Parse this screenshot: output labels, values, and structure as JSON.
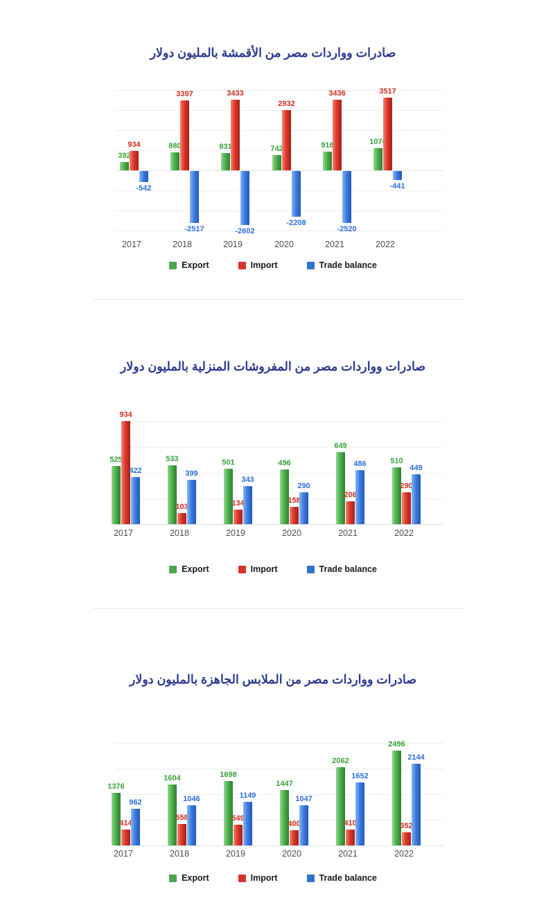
{
  "legend": {
    "export": "Export",
    "import": "Import",
    "trade_balance": "Trade balance"
  },
  "colors": {
    "title": "#2b3990",
    "export_bar": "#4db24d",
    "import_bar": "#e0372a",
    "trade_balance_bar": "#3e7ee2",
    "export_label": "#3aa13a",
    "import_label": "#cf2d20",
    "trade_balance_label": "#2d6fd9",
    "year_label": "#4d4d4d",
    "gridline": "#eeeeee"
  },
  "chart_data": [
    {
      "type": "bar",
      "title": "صادرات وواردات مصر من الأقمشة بالمليون دولار",
      "categories": [
        "2017",
        "2018",
        "2019",
        "2020",
        "2021",
        "2022"
      ],
      "series": [
        {
          "name": "Export",
          "values": [
            392,
            880,
            831,
            742,
            916,
            1076
          ]
        },
        {
          "name": "Import",
          "values": [
            934,
            3397,
            3433,
            2932,
            3436,
            3517
          ]
        },
        {
          "name": "Trade balance",
          "values": [
            -542,
            -2517,
            -2602,
            -2208,
            -2520,
            -441
          ]
        }
      ],
      "ylim": [
        -2800,
        3800
      ],
      "grid": true,
      "legend_position": "bottom",
      "xlabel": "",
      "ylabel": ""
    },
    {
      "type": "bar",
      "title": "صادرات وواردات مصر من المفروشات المنزلية بالمليون دولار",
      "categories": [
        "2017",
        "2018",
        "2019",
        "2020",
        "2021",
        "2022"
      ],
      "series": [
        {
          "name": "Export",
          "values": [
            525,
            533,
            501,
            496,
            649,
            510
          ]
        },
        {
          "name": "Import",
          "values": [
            934,
            103,
            134,
            158,
            206,
            290
          ]
        },
        {
          "name": "Trade balance",
          "values": [
            422,
            399,
            343,
            290,
            486,
            449
          ]
        }
      ],
      "ylim": [
        0,
        1000
      ],
      "grid": true,
      "legend_position": "bottom",
      "xlabel": "",
      "ylabel": ""
    },
    {
      "type": "bar",
      "title": "صادرات وواردات مصر من الملابس الجاهزة بالمليون دولار",
      "categories": [
        "2017",
        "2018",
        "2019",
        "2020",
        "2021",
        "2022"
      ],
      "series": [
        {
          "name": "Export",
          "values": [
            1376,
            1604,
            1698,
            1447,
            2062,
            2496
          ]
        },
        {
          "name": "Import",
          "values": [
            414,
            558,
            549,
            400,
            410,
            352
          ]
        },
        {
          "name": "Trade balance",
          "values": [
            962,
            1046,
            1149,
            1047,
            1652,
            2144
          ]
        }
      ],
      "ylim": [
        0,
        2700
      ],
      "grid": true,
      "legend_position": "bottom",
      "xlabel": "",
      "ylabel": ""
    }
  ]
}
